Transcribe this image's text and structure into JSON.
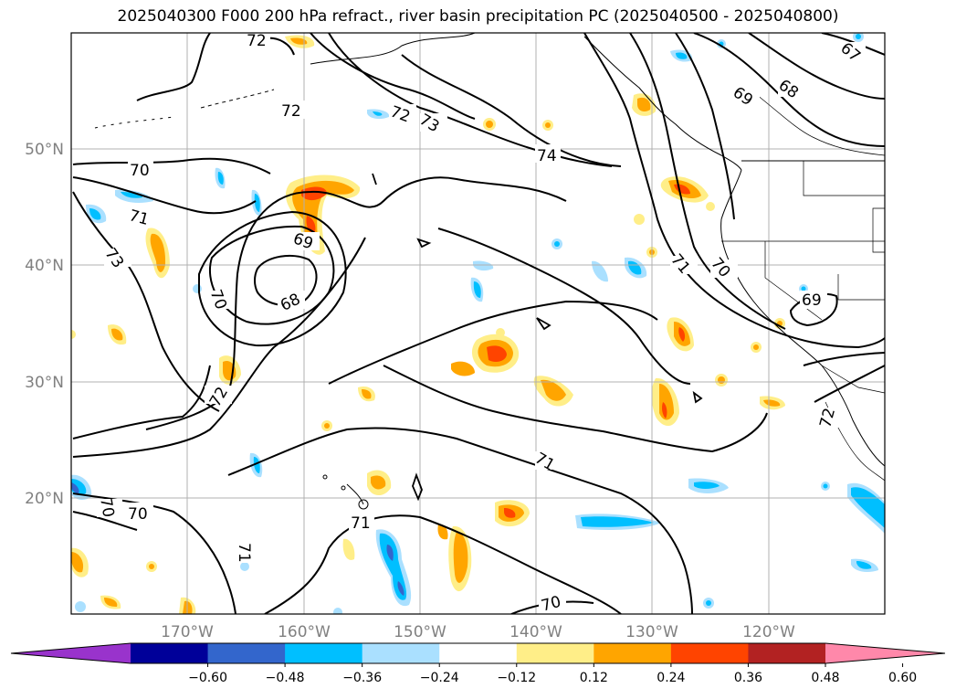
{
  "title": "2025040300 F000 200 hPa refract., river basin precipitation PC (2025040500 - 2025040800)",
  "map": {
    "lat_labels": [
      "50°N",
      "40°N",
      "30°N",
      "20°N"
    ],
    "lon_labels": [
      "170°W",
      "160°W",
      "150°W",
      "140°W",
      "130°W",
      "120°W"
    ],
    "contour_labels": [
      {
        "text": "72"
      },
      {
        "text": "72"
      },
      {
        "text": "72"
      },
      {
        "text": "73"
      },
      {
        "text": "74"
      },
      {
        "text": "69"
      },
      {
        "text": "68"
      },
      {
        "text": "67"
      },
      {
        "text": "70"
      },
      {
        "text": "71"
      },
      {
        "text": "73"
      },
      {
        "text": "69"
      },
      {
        "text": "68"
      },
      {
        "text": "70"
      },
      {
        "text": "72"
      },
      {
        "text": "71"
      },
      {
        "text": "70"
      },
      {
        "text": "70"
      },
      {
        "text": "71"
      },
      {
        "text": "71"
      },
      {
        "text": "71"
      },
      {
        "text": "70"
      },
      {
        "text": "69"
      },
      {
        "text": "72"
      },
      {
        "text": "70"
      }
    ]
  },
  "colorbar": {
    "tick_labels": [
      "−0.60",
      "−0.48",
      "−0.36",
      "−0.24",
      "−0.12",
      "0.12",
      "0.24",
      "0.36",
      "0.48",
      "0.60"
    ],
    "colors": [
      "#9933cc",
      "#000099",
      "#3366cc",
      "#00bfff",
      "#aae0ff",
      "#ffffff",
      "#ffee88",
      "#ffa500",
      "#ff4400",
      "#b22222",
      "#ff88aa"
    ]
  },
  "colors": {
    "neg_light": "#aae0ff",
    "neg_mid": "#00bfff",
    "neg_dark": "#3366cc",
    "pos_light": "#ffee88",
    "pos_mid": "#ffa500",
    "pos_dark": "#ff4400"
  }
}
